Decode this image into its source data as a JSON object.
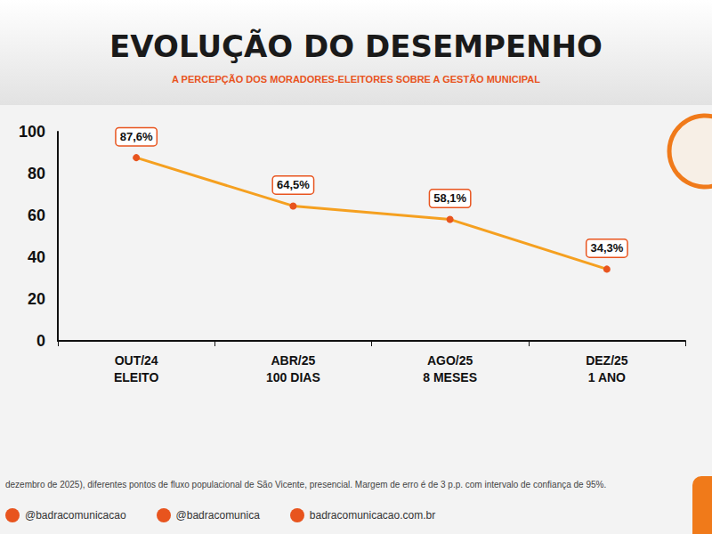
{
  "chart_data": {
    "type": "line",
    "title": "EVOLUÇÃO DO DESEMPENHO",
    "subtitle": "A PERCEPÇÃO DOS MORADORES-ELEITORES SOBRE A GESTÃO MUNICIPAL",
    "categories": [
      "OUT/24\nELEITO",
      "ABR/25\n100 DIAS",
      "AGO/25\n8 MESES",
      "DEZ/25\n1 ANO"
    ],
    "values": [
      87.6,
      64.5,
      58.1,
      34.3
    ],
    "value_labels": [
      "87,6%",
      "64,5%",
      "58,1%",
      "34,3%"
    ],
    "color": "#f5a020",
    "marker": "circle",
    "ylim": [
      0,
      100
    ],
    "yticks": [
      0,
      20,
      40,
      60,
      80,
      100
    ],
    "grid": false,
    "data_labels": true
  },
  "footer": {
    "note": "dezembro de 2025), diferentes pontos de fluxo populacional de São Vicente, presencial. Margem de erro é de 3 p.p. com intervalo de confiança de 95%.",
    "credits": [
      "@badracomunicacao",
      "@badracomunica",
      "badracomunicacao.com.br"
    ]
  }
}
